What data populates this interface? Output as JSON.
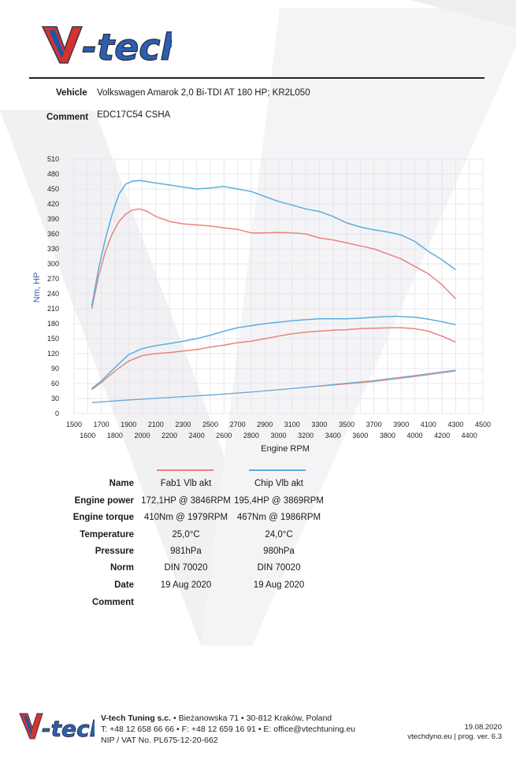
{
  "header": {
    "vehicle_label": "Vehicle",
    "vehicle_value": "Volkswagen Amarok 2,0 Bi-TDI AT 180 HP; KR2L050",
    "comment_label": "Comment",
    "comment_value": "EDC17C54 CSHA"
  },
  "logo": {
    "text": "V-tech",
    "colors": {
      "red": "#d6322e",
      "blue": "#1f55a8",
      "dark": "#3a3a4a"
    }
  },
  "chart_data": {
    "type": "line",
    "ylabel": "Nm, HP",
    "xlabel": "Engine RPM",
    "ylim": [
      0,
      510
    ],
    "yticks": [
      "0",
      "30",
      "60",
      "90",
      "120",
      "150",
      "180",
      "210",
      "240",
      "270",
      "300",
      "330",
      "360",
      "390",
      "420",
      "450",
      "480",
      "510"
    ],
    "xlim": [
      1500,
      4500
    ],
    "xticks_upper": [
      "1500",
      "1700",
      "1900",
      "2100",
      "2300",
      "2500",
      "2700",
      "2900",
      "3100",
      "3300",
      "3500",
      "3700",
      "3900",
      "4100",
      "4300",
      "4500"
    ],
    "xticks_lower": [
      "1600",
      "1800",
      "2000",
      "2200",
      "2400",
      "2600",
      "2800",
      "3000",
      "3200",
      "3400",
      "3600",
      "3800",
      "4000",
      "4200",
      "4400"
    ],
    "series": [
      {
        "name": "Fab1 Vlb akt",
        "quantity": "torque",
        "color": "#e8857a",
        "x": [
          1630,
          1680,
          1730,
          1780,
          1830,
          1880,
          1930,
          1979,
          2030,
          2100,
          2200,
          2300,
          2400,
          2500,
          2600,
          2700,
          2800,
          2900,
          3000,
          3100,
          3200,
          3300,
          3400,
          3500,
          3600,
          3700,
          3800,
          3900,
          4000,
          4100,
          4200,
          4300
        ],
        "y": [
          210,
          275,
          325,
          360,
          385,
          400,
          408,
          410,
          406,
          395,
          385,
          380,
          378,
          376,
          372,
          369,
          362,
          362,
          363,
          362,
          360,
          352,
          348,
          342,
          336,
          330,
          320,
          310,
          295,
          280,
          258,
          230
        ]
      },
      {
        "name": "Chip Vlb akt",
        "quantity": "torque",
        "color": "#5aaee0",
        "x": [
          1630,
          1680,
          1730,
          1780,
          1830,
          1880,
          1930,
          1986,
          2030,
          2100,
          2200,
          2300,
          2400,
          2500,
          2600,
          2700,
          2800,
          2900,
          3000,
          3100,
          3200,
          3300,
          3400,
          3500,
          3600,
          3700,
          3800,
          3900,
          4000,
          4100,
          4200,
          4300
        ],
        "y": [
          215,
          290,
          350,
          400,
          440,
          460,
          466,
          467,
          465,
          462,
          458,
          454,
          450,
          452,
          455,
          450,
          445,
          435,
          425,
          418,
          410,
          405,
          395,
          382,
          374,
          368,
          364,
          358,
          345,
          325,
          308,
          288
        ]
      },
      {
        "name": "Fab1 Vlb akt",
        "quantity": "power",
        "color": "#e8857a",
        "x": [
          1630,
          1700,
          1800,
          1900,
          2000,
          2100,
          2200,
          2300,
          2400,
          2500,
          2600,
          2700,
          2800,
          2900,
          3000,
          3100,
          3200,
          3300,
          3400,
          3500,
          3600,
          3700,
          3846,
          3900,
          4000,
          4100,
          4200,
          4300
        ],
        "y": [
          48,
          62,
          85,
          105,
          116,
          120,
          122,
          125,
          128,
          133,
          137,
          142,
          145,
          150,
          155,
          160,
          163,
          165,
          167,
          168,
          170,
          171,
          172,
          172,
          170,
          165,
          155,
          143
        ]
      },
      {
        "name": "Chip Vlb akt",
        "quantity": "power",
        "color": "#5aaee0",
        "x": [
          1630,
          1700,
          1800,
          1900,
          2000,
          2100,
          2200,
          2300,
          2400,
          2500,
          2600,
          2700,
          2800,
          2900,
          3000,
          3100,
          3200,
          3300,
          3400,
          3500,
          3600,
          3700,
          3869,
          3900,
          4000,
          4100,
          4200,
          4300
        ],
        "y": [
          50,
          65,
          92,
          118,
          130,
          136,
          140,
          145,
          150,
          157,
          165,
          172,
          176,
          180,
          183,
          186,
          188,
          190,
          190,
          190,
          191,
          193,
          195,
          194,
          193,
          189,
          184,
          178
        ]
      },
      {
        "name": "Fab1 Vlb akt",
        "quantity": "loss",
        "color": "#e8857a",
        "x": [
          1630,
          1900,
          2200,
          2500,
          2800,
          3100,
          3400,
          3700,
          4000,
          4300
        ],
        "y": [
          22,
          27,
          32,
          37,
          43,
          50,
          57,
          64,
          74,
          85
        ]
      },
      {
        "name": "Chip Vlb akt",
        "quantity": "loss",
        "color": "#5aaee0",
        "x": [
          1630,
          1900,
          2200,
          2500,
          2800,
          3100,
          3400,
          3700,
          4000,
          4300
        ],
        "y": [
          22,
          27,
          32,
          37,
          43,
          50,
          58,
          66,
          76,
          87
        ]
      }
    ]
  },
  "results": {
    "rows": [
      {
        "label": "Name",
        "c1": "Fab1 Vlb akt",
        "c2": "Chip Vlb akt"
      },
      {
        "label": "Engine power",
        "c1": "172,1HP @  3846RPM",
        "c2": "195,4HP @  3869RPM"
      },
      {
        "label": "Engine torque",
        "c1": "410Nm @ 1979RPM",
        "c2": "467Nm @ 1986RPM"
      },
      {
        "label": "Temperature",
        "c1": "25,0°C",
        "c2": "24,0°C"
      },
      {
        "label": "Pressure",
        "c1": "981hPa",
        "c2": "980hPa"
      },
      {
        "label": "Norm",
        "c1": "DIN 70020",
        "c2": "DIN 70020"
      },
      {
        "label": "Date",
        "c1": "19 Aug 2020",
        "c2": "19 Aug 2020"
      },
      {
        "label": "Comment",
        "c1": "",
        "c2": ""
      }
    ]
  },
  "footer": {
    "company_bold": "V-tech Tuning s.c.",
    "address": " • Bieżanowska 71 • 30-812 Kraków, Poland",
    "contact": "T: +48 12 658 66 66 • F: +48 12 659 16 91 • E: office@vtechtuning.eu",
    "nip": "NIP / VAT No. PL675-12-20-662",
    "date": "19.08.2020",
    "program": "vtechdyno.eu | prog. ver. 6.3"
  }
}
